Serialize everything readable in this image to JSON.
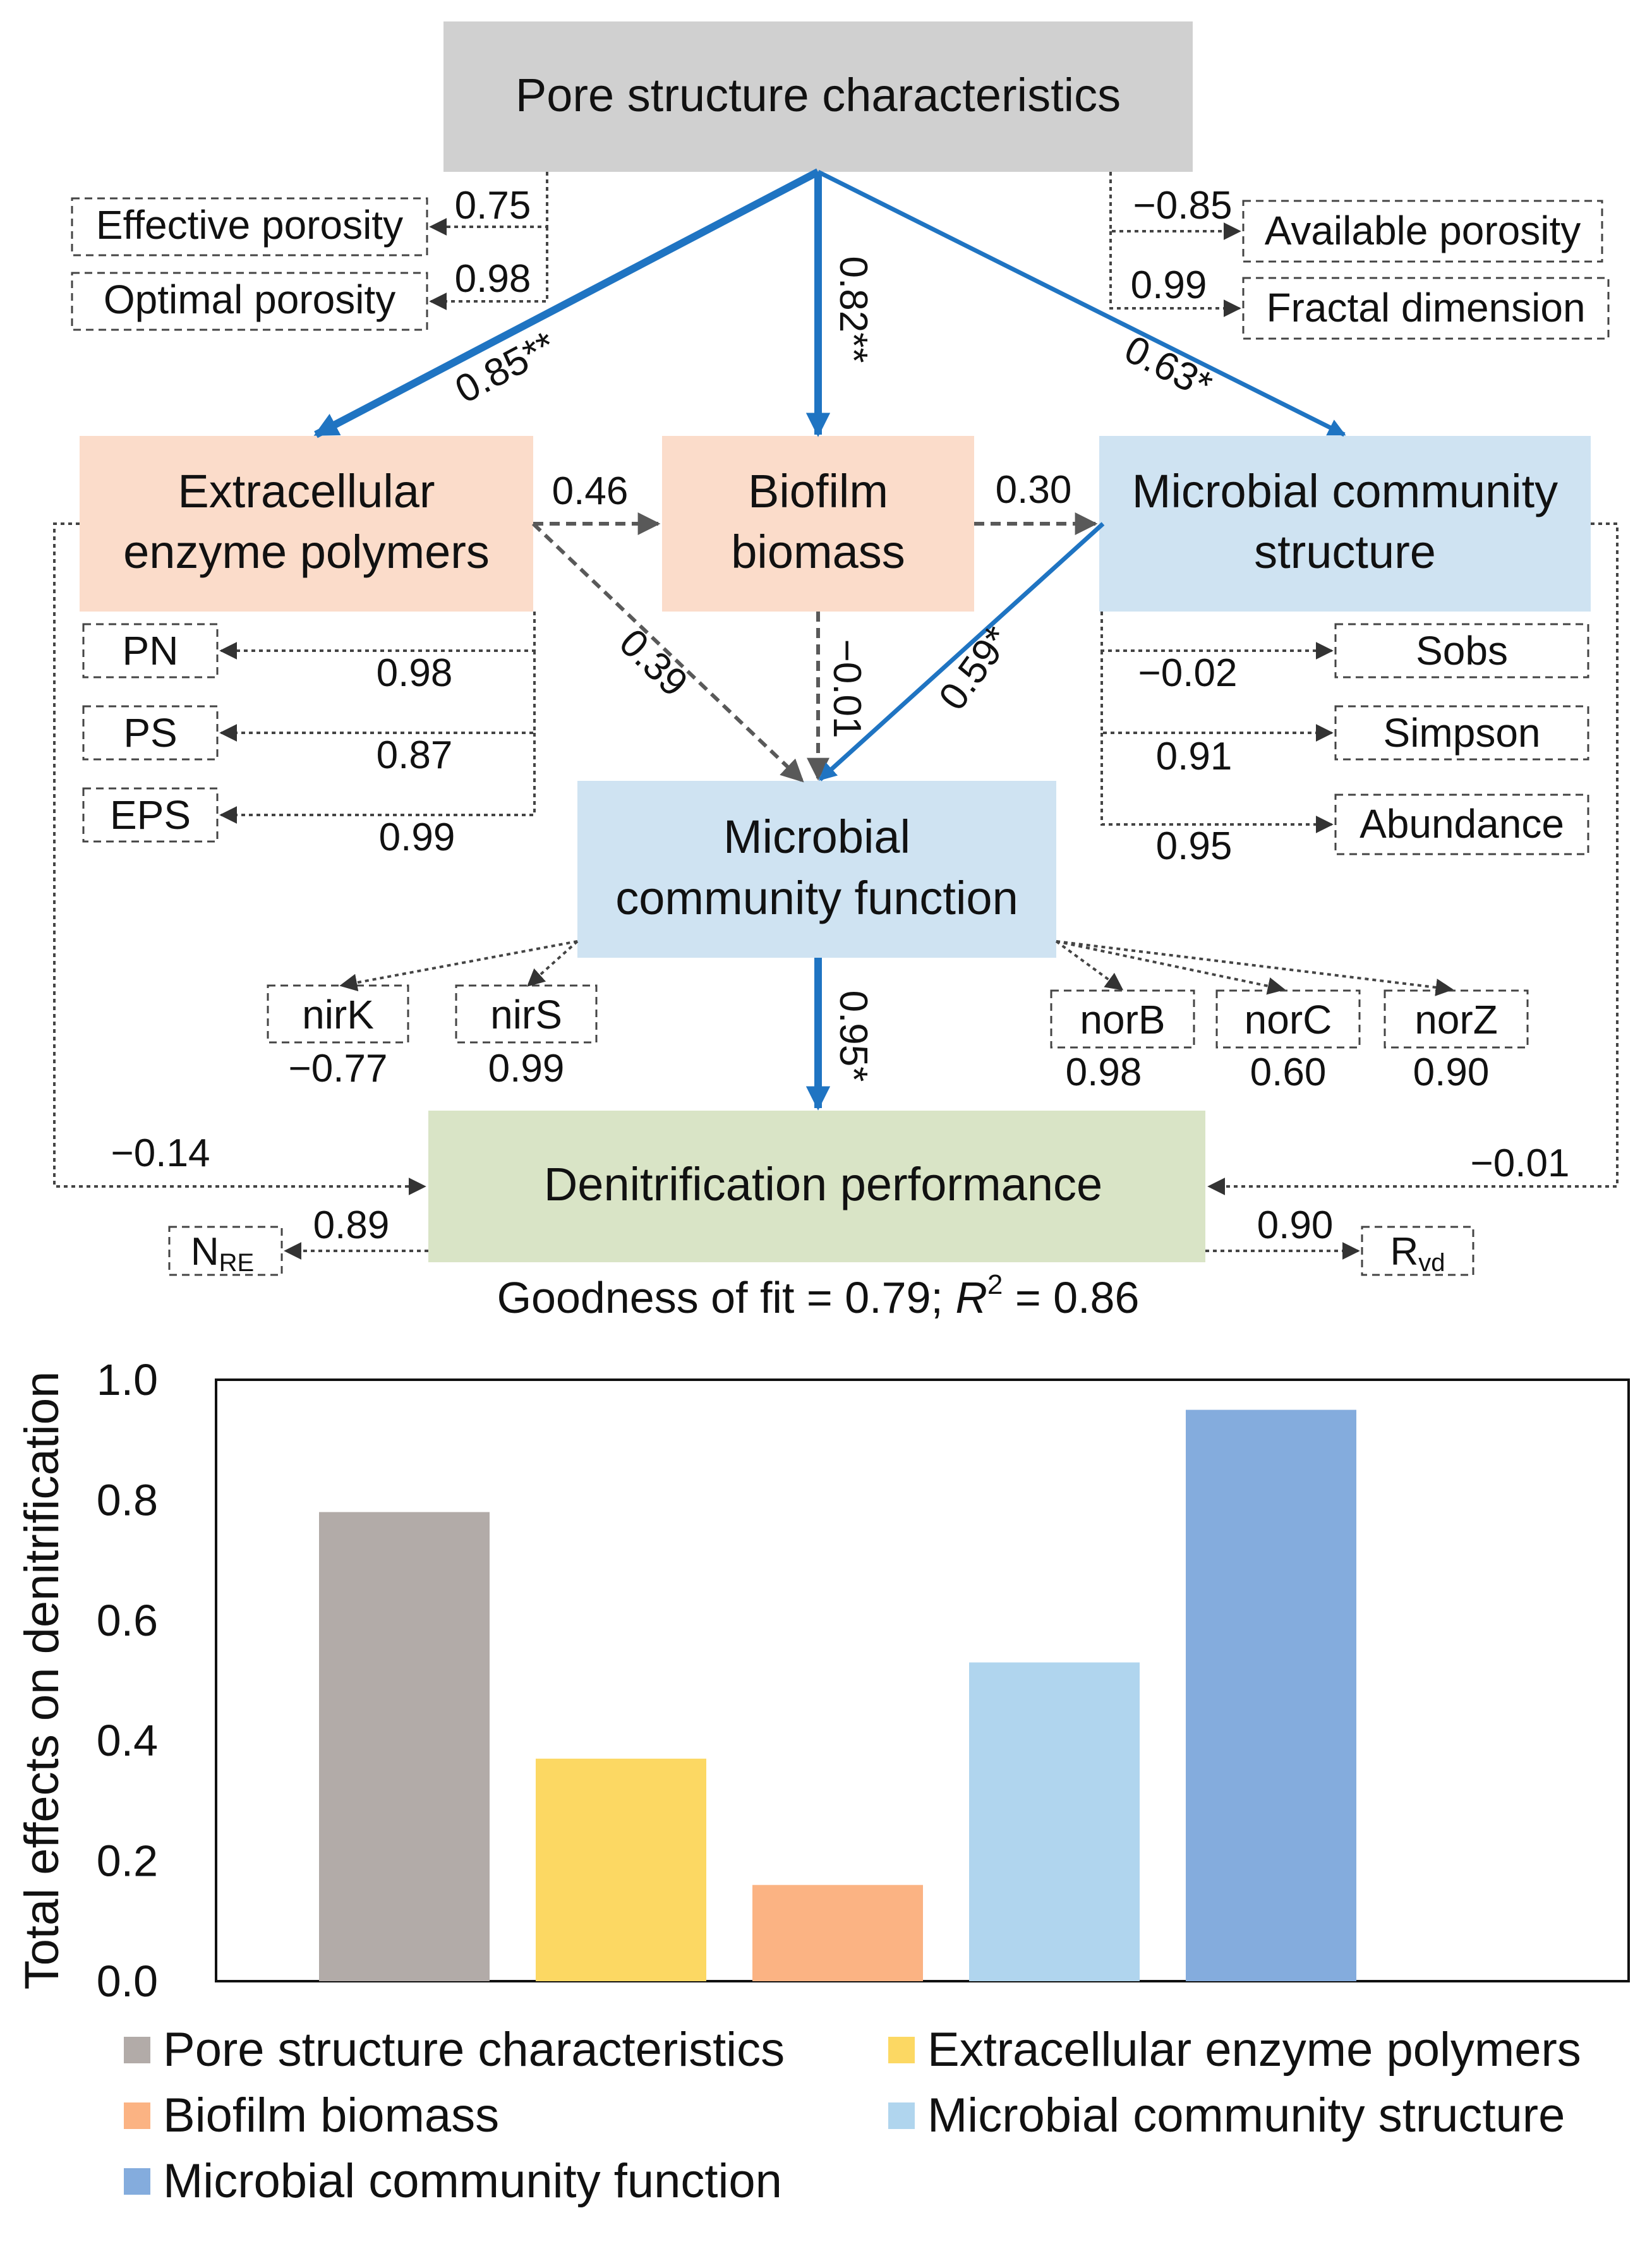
{
  "diagram": {
    "colors": {
      "gray_box": "#d0d0d0",
      "orange_box": "#fbdcca",
      "blue_box": "#cfe3f2",
      "green_box": "#d9e4c6",
      "blue_arrow": "#1f74c2",
      "gray_arrow": "#595959"
    },
    "nodes": {
      "pore": {
        "label": "Pore structure characteristics"
      },
      "eep": {
        "line1": "Extracellular",
        "line2": "enzyme polymers"
      },
      "bb": {
        "line1": "Biofilm",
        "line2": "biomass"
      },
      "mcs": {
        "line1": "Microbial community",
        "line2": "structure"
      },
      "mcf": {
        "line1": "Microbial",
        "line2": "community function"
      },
      "dp": {
        "label": "Denitrification performance"
      }
    },
    "indicators": {
      "effective_porosity": "Effective porosity",
      "optimal_porosity": "Optimal porosity",
      "available_porosity": "Available porosity",
      "fractal_dimension": "Fractal dimension",
      "pn": "PN",
      "ps": "PS",
      "eps": "EPS",
      "sobs": "Sobs",
      "simpson": "Simpson",
      "abundance": "Abundance",
      "nirk": "nirK",
      "nirs": "nirS",
      "norb": "norB",
      "norc": "norC",
      "norz": "norZ",
      "nre_main": "N",
      "nre_sub": "RE",
      "rvd_main": "R",
      "rvd_sub": "vd"
    },
    "loadings": {
      "effective_porosity": "0.75",
      "optimal_porosity": "0.98",
      "available_porosity": "−0.85",
      "fractal_dimension": "0.99",
      "pn": "0.98",
      "ps": "0.87",
      "eps": "0.99",
      "sobs": "−0.02",
      "simpson": "0.91",
      "abundance": "0.95",
      "nirk": "−0.77",
      "nirs": "0.99",
      "norb": "0.98",
      "norc": "0.60",
      "norz": "0.90",
      "nre": "0.89",
      "rvd": "0.90"
    },
    "paths": {
      "pore_eep": "0.85**",
      "pore_bb": "0.82**",
      "pore_mcs": "0.63*",
      "eep_bb": "0.46",
      "bb_mcs": "0.30",
      "eep_mcf": "0.39",
      "bb_mcf": "−0.01",
      "mcs_mcf": "0.59*",
      "mcf_dp": "0.95*",
      "eep_dp": "−0.14",
      "mcs_dp": "−0.01"
    },
    "fit": {
      "gof_text": "Goodness of fit = 0.79; ",
      "r_letter": "R",
      "r_sup": "2",
      "r_value": " = 0.86"
    }
  },
  "chart_data": {
    "type": "bar",
    "title": "",
    "xlabel": "",
    "ylabel": "Total effects on denitrification",
    "ylim": [
      0,
      1.0
    ],
    "yticks": [
      "0.0",
      "0.2",
      "0.4",
      "0.6",
      "0.8",
      "1.0"
    ],
    "categories": [
      "Pore structure characteristics",
      "Extracellular enzyme polymers",
      "Biofilm biomass",
      "Microbial community structure",
      "Microbial community function"
    ],
    "values": [
      0.78,
      0.37,
      0.16,
      0.53,
      0.95
    ],
    "colors": [
      "#b2aba8",
      "#fcd863",
      "#fbb383",
      "#b0d5ee",
      "#84acdd"
    ],
    "legend_position": "bottom"
  }
}
